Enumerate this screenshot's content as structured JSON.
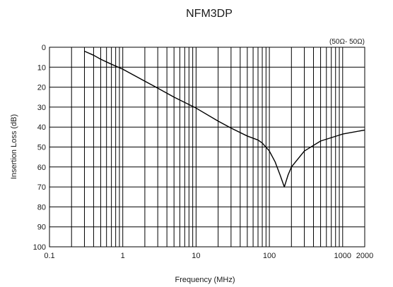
{
  "chart_data": {
    "type": "line",
    "title": "NFM3DP",
    "annotation": "(50Ω- 50Ω)",
    "xlabel": "Frequency (MHz)",
    "ylabel": "Insertion Loss (dB)",
    "x_scale": "log",
    "xlim": [
      0.1,
      2000
    ],
    "ylim": [
      0,
      100
    ],
    "y_inverted": true,
    "x_tick_labels": [
      {
        "value": 0.1,
        "label": "0.1"
      },
      {
        "value": 1,
        "label": "1"
      },
      {
        "value": 10,
        "label": "10"
      },
      {
        "value": 100,
        "label": "100"
      },
      {
        "value": 1000,
        "label": "1000"
      },
      {
        "value": 2000,
        "label": "2000"
      }
    ],
    "y_ticks": [
      0,
      10,
      20,
      30,
      40,
      50,
      60,
      70,
      80,
      90,
      100
    ],
    "grid": true,
    "series": [
      {
        "color": "#000000",
        "x": [
          0.3,
          0.4,
          0.5,
          0.7,
          1,
          2,
          3,
          5,
          10,
          20,
          30,
          50,
          70,
          80,
          100,
          120,
          140,
          160,
          180,
          200,
          300,
          500,
          1000,
          2000
        ],
        "y": [
          2,
          4,
          6,
          8.5,
          11,
          17,
          20.5,
          25,
          30.5,
          37,
          40.5,
          44.5,
          46.5,
          48,
          52,
          57.5,
          64,
          70,
          64,
          60,
          52,
          47,
          43.5,
          41.5
        ]
      }
    ]
  }
}
